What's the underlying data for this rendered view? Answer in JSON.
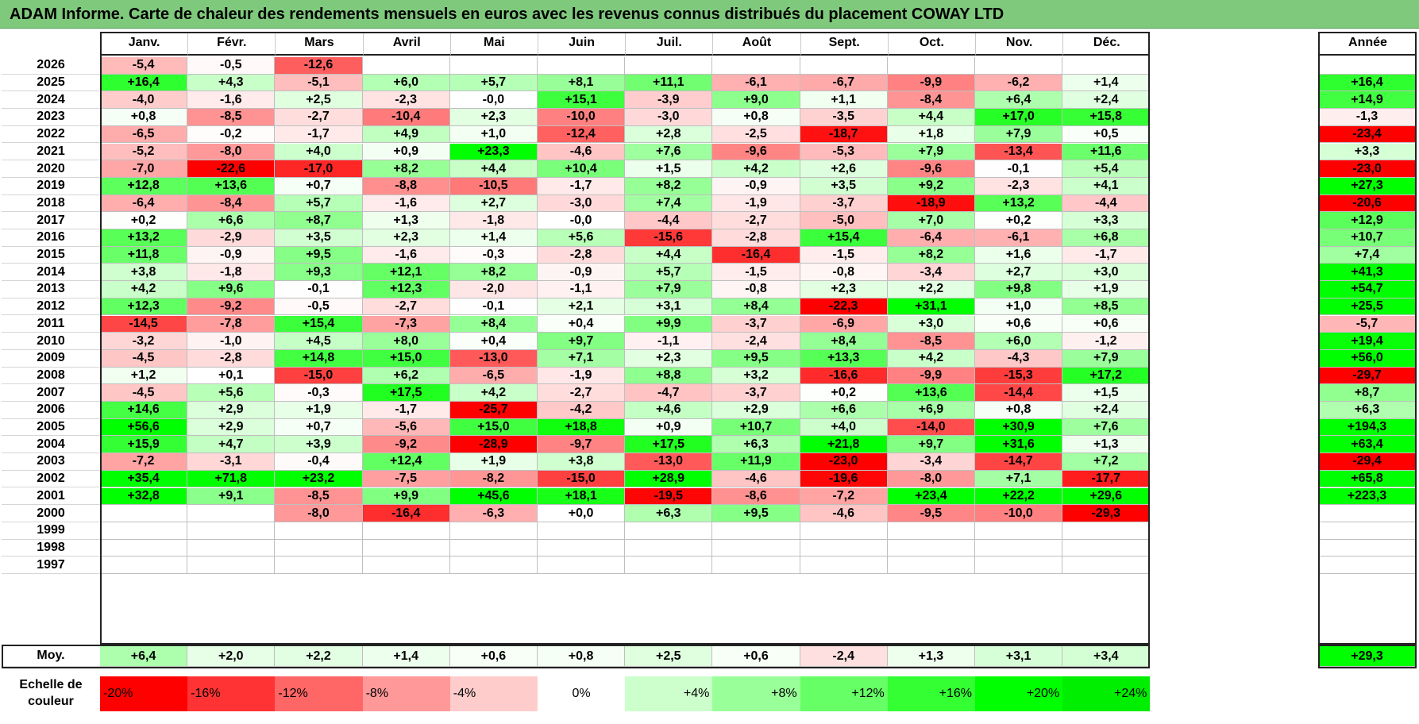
{
  "title": "ADAM Informe. Carte de chaleur des rendements mensuels en euros avec les revenus connus distribués du placement COWAY LTD",
  "chart_data": {
    "type": "heatmap",
    "title": "ADAM Informe. Carte de chaleur des rendements mensuels en euros avec les revenus connus distribués du placement COWAY LTD",
    "columns": [
      "Janv.",
      "Févr.",
      "Mars",
      "Avril",
      "Mai",
      "Juin",
      "Juil.",
      "Août",
      "Sept.",
      "Oct.",
      "Nov.",
      "Déc."
    ],
    "year_column_label": "Année",
    "rows": [
      {
        "year": "2026",
        "values": [
          "-5,4",
          "-0,5",
          "-12,6",
          "",
          "",
          "",
          "",
          "",
          "",
          "",
          "",
          ""
        ],
        "annual": ""
      },
      {
        "year": "2025",
        "values": [
          "+16,4",
          "+4,3",
          "-5,1",
          "+6,0",
          "+5,7",
          "+8,1",
          "+11,1",
          "-6,1",
          "-6,7",
          "-9,9",
          "-6,2",
          "+1,4"
        ],
        "annual": "+16,4"
      },
      {
        "year": "2024",
        "values": [
          "-4,0",
          "-1,6",
          "+2,5",
          "-2,3",
          "-0,0",
          "+15,1",
          "-3,9",
          "+9,0",
          "+1,1",
          "-8,4",
          "+6,4",
          "+2,4"
        ],
        "annual": "+14,9"
      },
      {
        "year": "2023",
        "values": [
          "+0,8",
          "-8,5",
          "-2,7",
          "-10,4",
          "+2,3",
          "-10,0",
          "-3,0",
          "+0,8",
          "-3,5",
          "+4,4",
          "+17,0",
          "+15,8"
        ],
        "annual": "-1,3"
      },
      {
        "year": "2022",
        "values": [
          "-6,5",
          "-0,2",
          "-1,7",
          "+4,9",
          "+1,0",
          "-12,4",
          "+2,8",
          "-2,5",
          "-18,7",
          "+1,8",
          "+7,9",
          "+0,5"
        ],
        "annual": "-23,4"
      },
      {
        "year": "2021",
        "values": [
          "-5,2",
          "-8,0",
          "+4,0",
          "+0,9",
          "+23,3",
          "-4,6",
          "+7,6",
          "-9,6",
          "-5,3",
          "+7,9",
          "-13,4",
          "+11,6"
        ],
        "annual": "+3,3"
      },
      {
        "year": "2020",
        "values": [
          "-7,0",
          "-22,6",
          "-17,0",
          "+8,2",
          "+4,4",
          "+10,4",
          "+1,5",
          "+4,2",
          "+2,6",
          "-9,6",
          "-0,1",
          "+5,4"
        ],
        "annual": "-23,0"
      },
      {
        "year": "2019",
        "values": [
          "+12,8",
          "+13,6",
          "+0,7",
          "-8,8",
          "-10,5",
          "-1,7",
          "+8,2",
          "-0,9",
          "+3,5",
          "+9,2",
          "-2,3",
          "+4,1"
        ],
        "annual": "+27,3"
      },
      {
        "year": "2018",
        "values": [
          "-6,4",
          "-8,4",
          "+5,7",
          "-1,6",
          "+2,7",
          "-3,0",
          "+7,4",
          "-1,9",
          "-3,7",
          "-18,9",
          "+13,2",
          "-4,4"
        ],
        "annual": "-20,6"
      },
      {
        "year": "2017",
        "values": [
          "+0,2",
          "+6,6",
          "+8,7",
          "+1,3",
          "-1,8",
          "-0,0",
          "-4,4",
          "-2,7",
          "-5,0",
          "+7,0",
          "+0,2",
          "+3,3"
        ],
        "annual": "+12,9"
      },
      {
        "year": "2016",
        "values": [
          "+13,2",
          "-2,9",
          "+3,5",
          "+2,3",
          "+1,4",
          "+5,6",
          "-15,6",
          "-2,8",
          "+15,4",
          "-6,4",
          "-6,1",
          "+6,8"
        ],
        "annual": "+10,7"
      },
      {
        "year": "2015",
        "values": [
          "+11,8",
          "-0,9",
          "+9,5",
          "-1,6",
          "-0,3",
          "-2,8",
          "+4,4",
          "-16,4",
          "-1,5",
          "+8,2",
          "+1,6",
          "-1,7"
        ],
        "annual": "+7,4"
      },
      {
        "year": "2014",
        "values": [
          "+3,8",
          "-1,8",
          "+9,3",
          "+12,1",
          "+8,2",
          "-0,9",
          "+5,7",
          "-1,5",
          "-0,8",
          "-3,4",
          "+2,7",
          "+3,0"
        ],
        "annual": "+41,3"
      },
      {
        "year": "2013",
        "values": [
          "+4,2",
          "+9,6",
          "-0,1",
          "+12,3",
          "-2,0",
          "-1,1",
          "+7,9",
          "-0,8",
          "+2,3",
          "+2,2",
          "+9,8",
          "+1,9"
        ],
        "annual": "+54,7"
      },
      {
        "year": "2012",
        "values": [
          "+12,3",
          "-9,2",
          "-0,5",
          "-2,7",
          "-0,1",
          "+2,1",
          "+3,1",
          "+8,4",
          "-22,3",
          "+31,1",
          "+1,0",
          "+8,5"
        ],
        "annual": "+25,5"
      },
      {
        "year": "2011",
        "values": [
          "-14,5",
          "-7,8",
          "+15,4",
          "-7,3",
          "+8,4",
          "+0,4",
          "+9,9",
          "-3,7",
          "-6,9",
          "+3,0",
          "+0,6",
          "+0,6"
        ],
        "annual": "-5,7"
      },
      {
        "year": "2010",
        "values": [
          "-3,2",
          "-1,0",
          "+4,5",
          "+8,0",
          "+0,4",
          "+9,7",
          "-1,1",
          "-2,4",
          "+8,4",
          "-8,5",
          "+6,0",
          "-1,2"
        ],
        "annual": "+19,4"
      },
      {
        "year": "2009",
        "values": [
          "-4,5",
          "-2,8",
          "+14,8",
          "+15,0",
          "-13,0",
          "+7,1",
          "+2,3",
          "+9,5",
          "+13,3",
          "+4,2",
          "-4,3",
          "+7,9"
        ],
        "annual": "+56,0"
      },
      {
        "year": "2008",
        "values": [
          "+1,2",
          "+0,1",
          "-15,0",
          "+6,2",
          "-6,5",
          "-1,9",
          "+8,8",
          "+3,2",
          "-16,6",
          "-9,9",
          "-15,3",
          "+17,2"
        ],
        "annual": "-29,7"
      },
      {
        "year": "2007",
        "values": [
          "-4,5",
          "+5,6",
          "-0,3",
          "+17,5",
          "+4,2",
          "-2,7",
          "-4,7",
          "-3,7",
          "+0,2",
          "+13,6",
          "-14,4",
          "+1,5"
        ],
        "annual": "+8,7"
      },
      {
        "year": "2006",
        "values": [
          "+14,6",
          "+2,9",
          "+1,9",
          "-1,7",
          "-25,7",
          "-4,2",
          "+4,6",
          "+2,9",
          "+6,6",
          "+6,9",
          "+0,8",
          "+2,4"
        ],
        "annual": "+6,3"
      },
      {
        "year": "2005",
        "values": [
          "+56,6",
          "+2,9",
          "+0,7",
          "-5,6",
          "+15,0",
          "+18,8",
          "+0,9",
          "+10,7",
          "+4,0",
          "-14,0",
          "+30,9",
          "+7,6"
        ],
        "annual": "+194,3"
      },
      {
        "year": "2004",
        "values": [
          "+15,9",
          "+4,7",
          "+3,9",
          "-9,2",
          "-28,9",
          "-9,7",
          "+17,5",
          "+6,3",
          "+21,8",
          "+9,7",
          "+31,6",
          "+1,3"
        ],
        "annual": "+63,4"
      },
      {
        "year": "2003",
        "values": [
          "-7,2",
          "-3,1",
          "-0,4",
          "+12,4",
          "+1,9",
          "+3,8",
          "-13,0",
          "+11,9",
          "-23,0",
          "-3,4",
          "-14,7",
          "+7,2"
        ],
        "annual": "-29,4"
      },
      {
        "year": "2002",
        "values": [
          "+35,4",
          "+71,8",
          "+23,2",
          "-7,5",
          "-8,2",
          "-15,0",
          "+28,9",
          "-4,6",
          "-19,6",
          "-8,0",
          "+7,1",
          "-17,7"
        ],
        "annual": "+65,8"
      },
      {
        "year": "2001",
        "values": [
          "+32,8",
          "+9,1",
          "-8,5",
          "+9,9",
          "+45,6",
          "+18,1",
          "-19,5",
          "-8,6",
          "-7,2",
          "+23,4",
          "+22,2",
          "+29,6"
        ],
        "annual": "+223,3"
      },
      {
        "year": "2000",
        "values": [
          "",
          "",
          "-8,0",
          "-16,4",
          "-6,3",
          "+0,0",
          "+6,3",
          "+9,5",
          "-4,6",
          "-9,5",
          "-10,0",
          "-29,3"
        ],
        "annual": ""
      },
      {
        "year": "1999",
        "values": [
          "",
          "",
          "",
          "",
          "",
          "",
          "",
          "",
          "",
          "",
          "",
          ""
        ],
        "annual": ""
      },
      {
        "year": "1998",
        "values": [
          "",
          "",
          "",
          "",
          "",
          "",
          "",
          "",
          "",
          "",
          "",
          ""
        ],
        "annual": ""
      },
      {
        "year": "1997",
        "values": [
          "",
          "",
          "",
          "",
          "",
          "",
          "",
          "",
          "",
          "",
          "",
          ""
        ],
        "annual": ""
      }
    ],
    "average": {
      "label": "Moy.",
      "values": [
        "+6,4",
        "+2,0",
        "+2,2",
        "+1,4",
        "+0,6",
        "+0,8",
        "+2,5",
        "+0,6",
        "-2,4",
        "+1,3",
        "+3,1",
        "+3,4"
      ],
      "annual": "+29,3"
    },
    "legend": {
      "label": "Echelle de couleur",
      "stops": [
        {
          "value": -20,
          "label": "-20%",
          "color": "#ff0000"
        },
        {
          "value": -16,
          "label": "-16%",
          "color": "#ff3333"
        },
        {
          "value": -12,
          "label": "-12%",
          "color": "#ff6666"
        },
        {
          "value": -8,
          "label": "-8%",
          "color": "#ff9999"
        },
        {
          "value": -4,
          "label": "-4%",
          "color": "#ffcccc"
        },
        {
          "value": 0,
          "label": "0%",
          "color": "#ffffff"
        },
        {
          "value": 4,
          "label": "+4%",
          "color": "#ccffcc"
        },
        {
          "value": 8,
          "label": "+8%",
          "color": "#99ff99"
        },
        {
          "value": 12,
          "label": "+12%",
          "color": "#66ff66"
        },
        {
          "value": 16,
          "label": "+16%",
          "color": "#33ff33"
        },
        {
          "value": 20,
          "label": "+20%",
          "color": "#00ff00"
        },
        {
          "value": 24,
          "label": "+24%",
          "color": "#00ee00"
        }
      ]
    }
  }
}
